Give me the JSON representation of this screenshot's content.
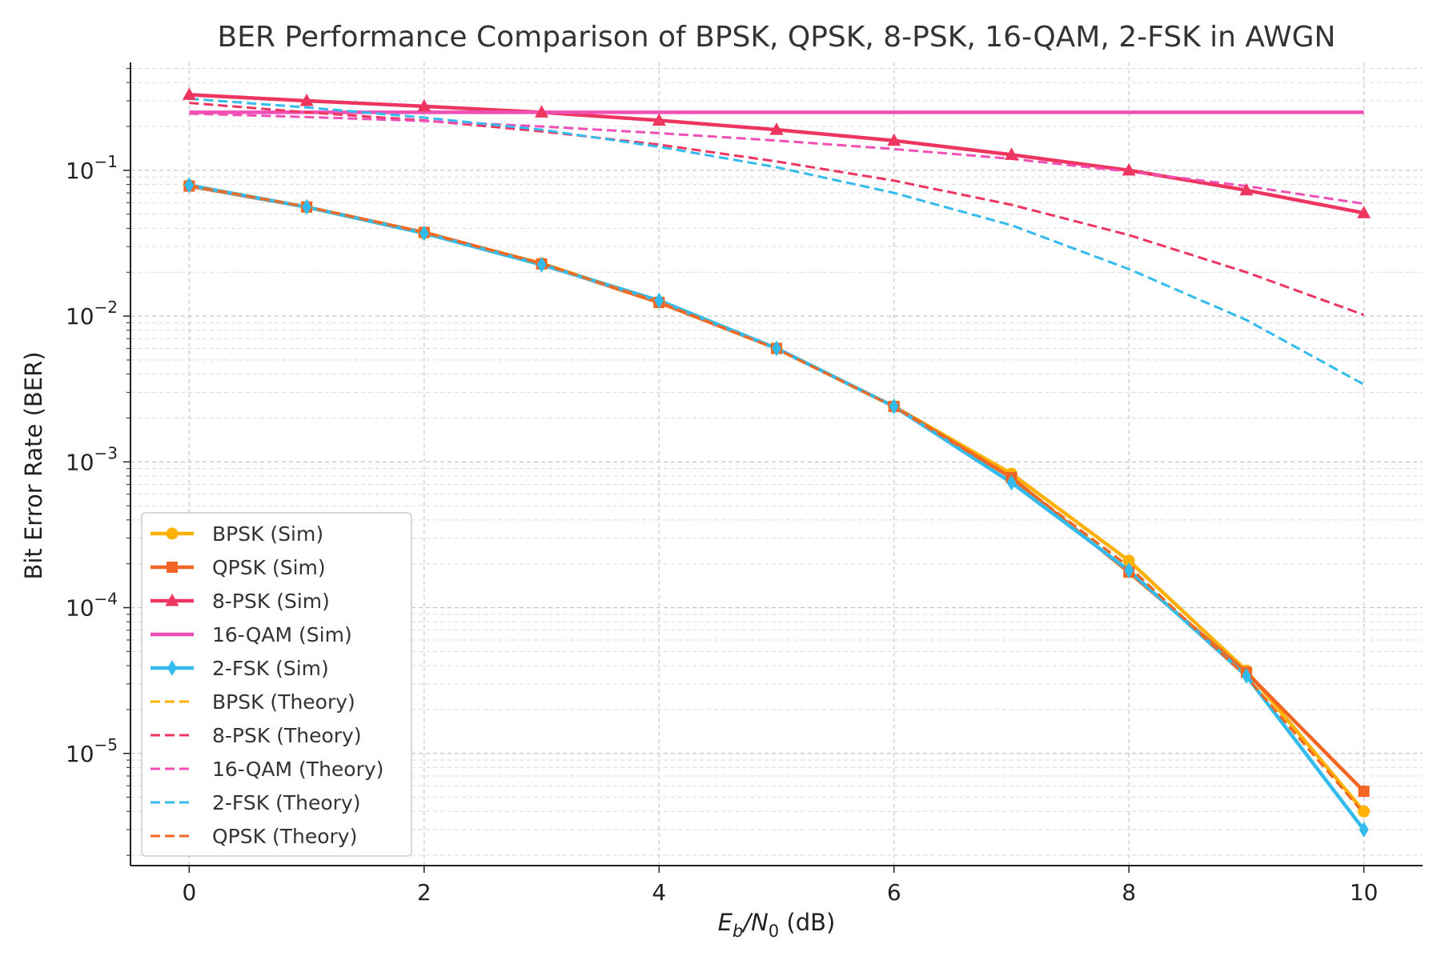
{
  "chart_data": {
    "type": "line",
    "title": "BER Performance Comparison of BPSK, QPSK, 8-PSK, 16-QAM, 2-FSK in AWGN",
    "xlabel": {
      "base": "E",
      "sub1": "b",
      "mid": "/N",
      "sub2": "0",
      "tail": " (dB)"
    },
    "ylabel": "Bit Error Rate (BER)",
    "x": [
      0,
      1,
      2,
      3,
      4,
      5,
      6,
      7,
      8,
      9,
      10
    ],
    "xlim": [
      -0.5,
      10.5
    ],
    "ylim": [
      1.7e-06,
      0.55
    ],
    "yscale": "log",
    "x_ticks": [
      "0",
      "2",
      "4",
      "6",
      "8",
      "10"
    ],
    "y_ticks": [
      {
        "mantissa": "10",
        "exp": "−1"
      },
      {
        "mantissa": "10",
        "exp": "−2"
      },
      {
        "mantissa": "10",
        "exp": "−3"
      },
      {
        "mantissa": "10",
        "exp": "−4"
      },
      {
        "mantissa": "10",
        "exp": "−5"
      }
    ],
    "grid": true,
    "legend_position": "bottom-left",
    "series": [
      {
        "name": "BPSK (Sim)",
        "color": "#FFB000",
        "style": "solid",
        "marker": "circle",
        "values": [
          0.079,
          0.056,
          0.037,
          0.023,
          0.0125,
          0.006,
          0.0024,
          0.00083,
          0.00021,
          3.7e-05,
          4e-06
        ]
      },
      {
        "name": "QPSK (Sim)",
        "color": "#F26522",
        "style": "solid",
        "marker": "square",
        "values": [
          0.078,
          0.056,
          0.0375,
          0.0228,
          0.0124,
          0.006,
          0.0024,
          0.00078,
          0.000175,
          3.6e-05,
          5.5e-06
        ]
      },
      {
        "name": "8-PSK (Sim)",
        "color": "#EE3560",
        "style": "solid",
        "marker": "triangle",
        "values": [
          0.33,
          0.3,
          0.275,
          0.25,
          0.22,
          0.19,
          0.16,
          0.128,
          0.1,
          0.073,
          0.051
        ]
      },
      {
        "name": "16-QAM (Sim)",
        "color": "#F04FB5",
        "style": "solid",
        "marker": "none",
        "values": [
          0.25,
          0.25,
          0.25,
          0.25,
          0.25,
          0.25,
          0.25,
          0.25,
          0.25,
          0.25,
          0.25
        ]
      },
      {
        "name": "2-FSK (Sim)",
        "color": "#33BBEE",
        "style": "solid",
        "marker": "diamond",
        "values": [
          0.079,
          0.056,
          0.037,
          0.0225,
          0.0128,
          0.006,
          0.0024,
          0.00072,
          0.00018,
          3.4e-05,
          3e-06
        ]
      },
      {
        "name": "BPSK (Theory)",
        "color": "#FFB000",
        "style": "dashed",
        "marker": "none",
        "values": [
          0.0786,
          0.0563,
          0.0375,
          0.0229,
          0.0125,
          0.00595,
          0.00239,
          0.000773,
          0.000191,
          3.36e-05,
          3.87e-06
        ]
      },
      {
        "name": "8-PSK (Theory)",
        "color": "#EE3560",
        "style": "dashed",
        "marker": "none",
        "values": [
          0.29,
          0.25,
          0.22,
          0.185,
          0.15,
          0.115,
          0.085,
          0.058,
          0.036,
          0.02,
          0.0102
        ]
      },
      {
        "name": "16-QAM (Theory)",
        "color": "#F04FB5",
        "style": "dashed",
        "marker": "none",
        "values": [
          0.245,
          0.232,
          0.218,
          0.2,
          0.18,
          0.16,
          0.14,
          0.12,
          0.098,
          0.078,
          0.059
        ]
      },
      {
        "name": "2-FSK (Theory)",
        "color": "#33BBEE",
        "style": "dashed",
        "marker": "none",
        "values": [
          0.31,
          0.27,
          0.23,
          0.19,
          0.145,
          0.105,
          0.07,
          0.042,
          0.021,
          0.0094,
          0.0034
        ]
      },
      {
        "name": "QPSK (Theory)",
        "color": "#F26522",
        "style": "dashed",
        "marker": "none",
        "values": [
          0.0786,
          0.0563,
          0.0375,
          0.0229,
          0.0125,
          0.00595,
          0.00239,
          0.000773,
          0.000191,
          3.36e-05,
          3.87e-06
        ]
      }
    ]
  }
}
